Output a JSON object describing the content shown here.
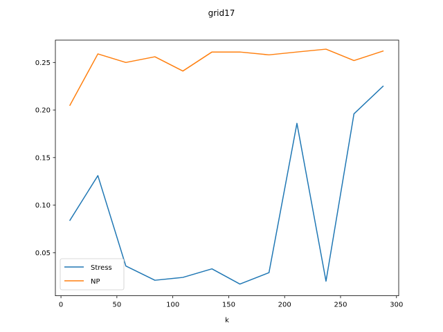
{
  "chart_data": {
    "type": "line",
    "title": "grid17",
    "xlabel": "k",
    "ylabel": "",
    "xlim": [
      -5,
      302
    ],
    "ylim": [
      0.0047,
      0.2735
    ],
    "xticks": [
      0,
      50,
      100,
      150,
      200,
      250,
      300
    ],
    "yticks": [
      0.05,
      0.1,
      0.15,
      0.2,
      0.25
    ],
    "ytick_labels": [
      "0.05",
      "0.10",
      "0.15",
      "0.20",
      "0.25"
    ],
    "grid": false,
    "legend_position": "lower-left",
    "x": [
      8,
      33,
      58,
      84,
      109,
      135,
      160,
      186,
      211,
      237,
      262,
      288
    ],
    "series": [
      {
        "name": "Stress",
        "color": "#1f77b4",
        "values": [
          0.084,
          0.131,
          0.036,
          0.021,
          0.024,
          0.033,
          0.017,
          0.029,
          0.186,
          0.02,
          0.196,
          0.225
        ]
      },
      {
        "name": "NP",
        "color": "#ff7f0e",
        "values": [
          0.205,
          0.259,
          0.25,
          0.256,
          0.241,
          0.261,
          0.261,
          0.258,
          0.261,
          0.264,
          0.252,
          0.262
        ]
      }
    ]
  }
}
